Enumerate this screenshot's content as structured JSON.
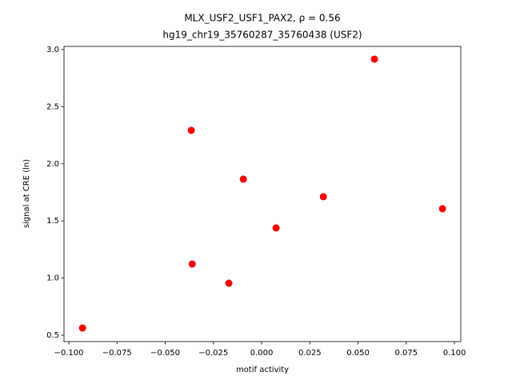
{
  "chart_data": {
    "type": "scatter",
    "title": "MLX_USF2_USF1_PAX2, ρ = 0.56",
    "subtitle": "hg19_chr19_35760287_35760438 (USF2)",
    "x_label": "motif activity",
    "y_label": "signal at CRE (ln)",
    "color": "#ff0000",
    "x": [
      -0.0929,
      -0.0365,
      -0.036,
      -0.017,
      -0.0095,
      0.0075,
      0.032,
      0.0585,
      0.0938
    ],
    "values": [
      0.563,
      2.293,
      1.123,
      0.955,
      1.866,
      1.439,
      1.712,
      2.916,
      1.607
    ],
    "xlim": [
      -0.1025,
      0.1033
    ],
    "ylim": [
      0.444,
      3.028
    ],
    "xticks": [
      {
        "value": -0.1,
        "label": "−0.100"
      },
      {
        "value": -0.075,
        "label": "−0.075"
      },
      {
        "value": -0.05,
        "label": "−0.050"
      },
      {
        "value": -0.025,
        "label": "−0.025"
      },
      {
        "value": 0,
        "label": "0.000"
      },
      {
        "value": 0.025,
        "label": "0.025"
      },
      {
        "value": 0.05,
        "label": "0.050"
      },
      {
        "value": 0.075,
        "label": "0.075"
      },
      {
        "value": 0.1,
        "label": "0.100"
      }
    ],
    "yticks": [
      0.5,
      {
        "value": 1,
        "label": "1.0"
      },
      1.5,
      {
        "value": 2,
        "label": "2.0"
      },
      2.5,
      {
        "value": 3,
        "label": "3.0"
      }
    ],
    "grid": false
  }
}
